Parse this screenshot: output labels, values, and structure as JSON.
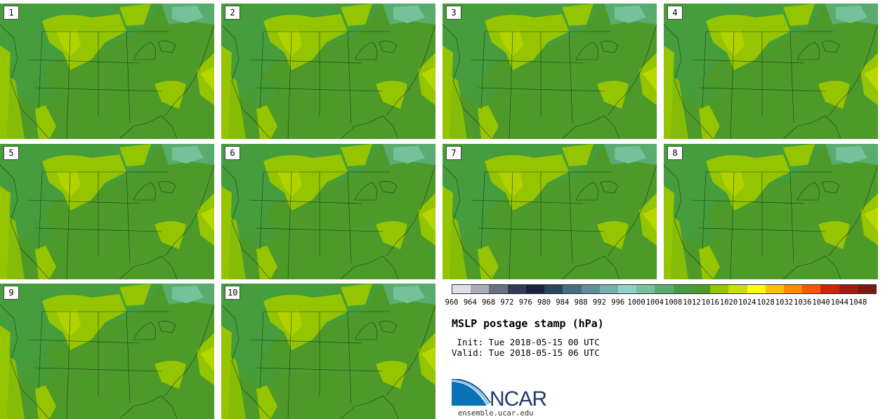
{
  "panels": [
    {
      "label": "1"
    },
    {
      "label": "2"
    },
    {
      "label": "3"
    },
    {
      "label": "4"
    },
    {
      "label": "5"
    },
    {
      "label": "6"
    },
    {
      "label": "7"
    },
    {
      "label": "8"
    },
    {
      "label": "9"
    },
    {
      "label": "10"
    }
  ],
  "colorbar": {
    "colors": [
      "#dde0e6",
      "#a9acb7",
      "#6b6f84",
      "#2f3c5a",
      "#182240",
      "#2a4360",
      "#466c80",
      "#5c8f9a",
      "#74b0b0",
      "#8fd3c8",
      "#75c29a",
      "#5aac6e",
      "#469d3d",
      "#4d9a2a",
      "#95c400",
      "#c6e000",
      "#ffff00",
      "#ffc000",
      "#ff8c00",
      "#f05a00",
      "#cc2600",
      "#a01c10",
      "#7a1a10"
    ],
    "labels": [
      "960",
      "964",
      "968",
      "972",
      "976",
      "980",
      "984",
      "988",
      "992",
      "996",
      "1000",
      "1004",
      "1008",
      "1012",
      "1016",
      "1020",
      "1024",
      "1028",
      "1032",
      "1036",
      "1040",
      "1044",
      "1048"
    ]
  },
  "title": "MSLP postage stamp (hPa)",
  "init": " Init: Tue 2018-05-15 00 UTC",
  "valid": "Valid: Tue 2018-05-15 06 UTC",
  "logo": {
    "name": "ncar-logo-icon",
    "text": "NCAR"
  },
  "site": "ensemble.ucar.edu"
}
